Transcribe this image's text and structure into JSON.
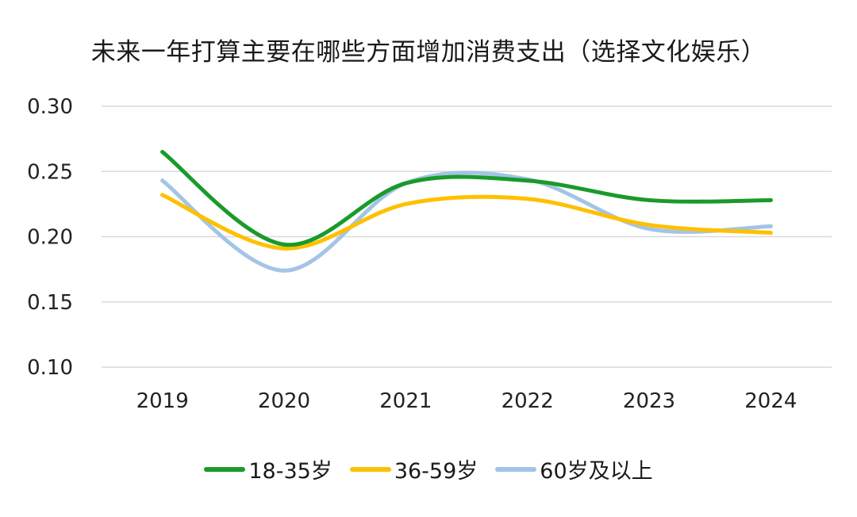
{
  "chart_data": {
    "type": "line",
    "title": "未来一年打算主要在哪些方面增加消费支出（选择文化娱乐）",
    "xlabel": "",
    "ylabel": "",
    "categories": [
      "2019",
      "2020",
      "2021",
      "2022",
      "2023",
      "2024"
    ],
    "y_ticks": [
      "0.10",
      "0.15",
      "0.20",
      "0.25",
      "0.30"
    ],
    "ylim": [
      0.1,
      0.3
    ],
    "grid": true,
    "legend_position": "bottom",
    "smooth": true,
    "series": [
      {
        "name": "18-35岁",
        "color": "#1a9a2a",
        "values": [
          0.265,
          0.194,
          0.241,
          0.243,
          0.228,
          0.228
        ]
      },
      {
        "name": "36-59岁",
        "color": "#ffc000",
        "values": [
          0.232,
          0.191,
          0.225,
          0.229,
          0.209,
          0.203
        ]
      },
      {
        "name": "60岁及以上",
        "color": "#a3c4e6",
        "values": [
          0.243,
          0.174,
          0.241,
          0.244,
          0.206,
          0.208
        ]
      }
    ]
  }
}
